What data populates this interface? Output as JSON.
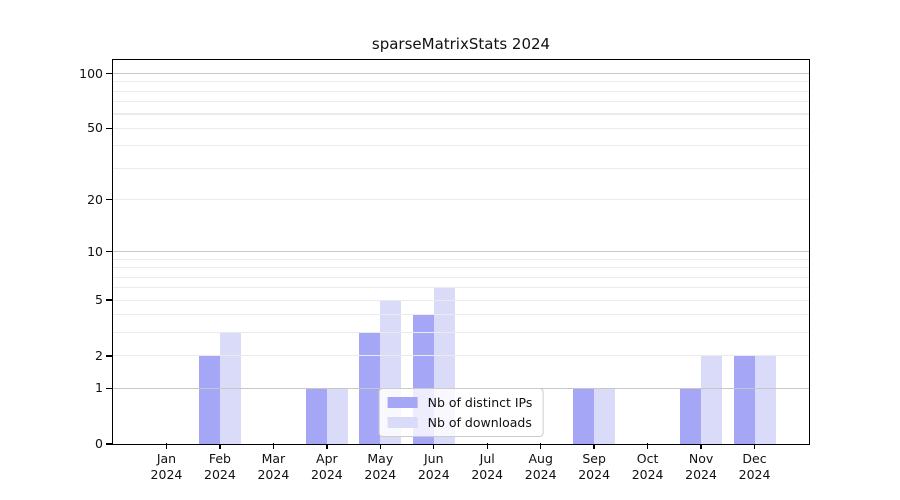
{
  "chart_data": {
    "type": "bar",
    "title": "sparseMatrixStats 2024",
    "x_year": "2024",
    "categories": [
      "Jan",
      "Feb",
      "Mar",
      "Apr",
      "May",
      "Jun",
      "Jul",
      "Aug",
      "Sep",
      "Oct",
      "Nov",
      "Dec"
    ],
    "series": [
      {
        "name": "Nb of distinct IPs",
        "color": "#a6a6f7",
        "values": [
          0,
          2,
          0,
          1,
          3,
          4,
          0,
          0,
          1,
          0,
          1,
          2
        ]
      },
      {
        "name": "Nb of downloads",
        "color": "#dadaf9",
        "values": [
          0,
          3,
          0,
          1,
          5,
          6,
          0,
          0,
          1,
          0,
          2,
          2
        ]
      }
    ],
    "y_axis": {
      "scale": "log1p",
      "tick_labels": [
        "0",
        "1",
        "2",
        "5",
        "10",
        "20",
        "50",
        "100"
      ],
      "ticks": [
        0,
        1,
        2,
        5,
        10,
        20,
        50,
        100
      ],
      "major_gridlines": [
        1,
        10,
        100
      ],
      "minor_gridlines": [
        2,
        3,
        4,
        5,
        6,
        7,
        8,
        9,
        20,
        30,
        40,
        50,
        60,
        70,
        80,
        90
      ],
      "axis_top_value": 117
    },
    "legend_position": "lower center",
    "colors": {
      "major_grid": "#c7c7c7",
      "minor_grid": "#ebebeb",
      "axis": "#000000"
    }
  }
}
